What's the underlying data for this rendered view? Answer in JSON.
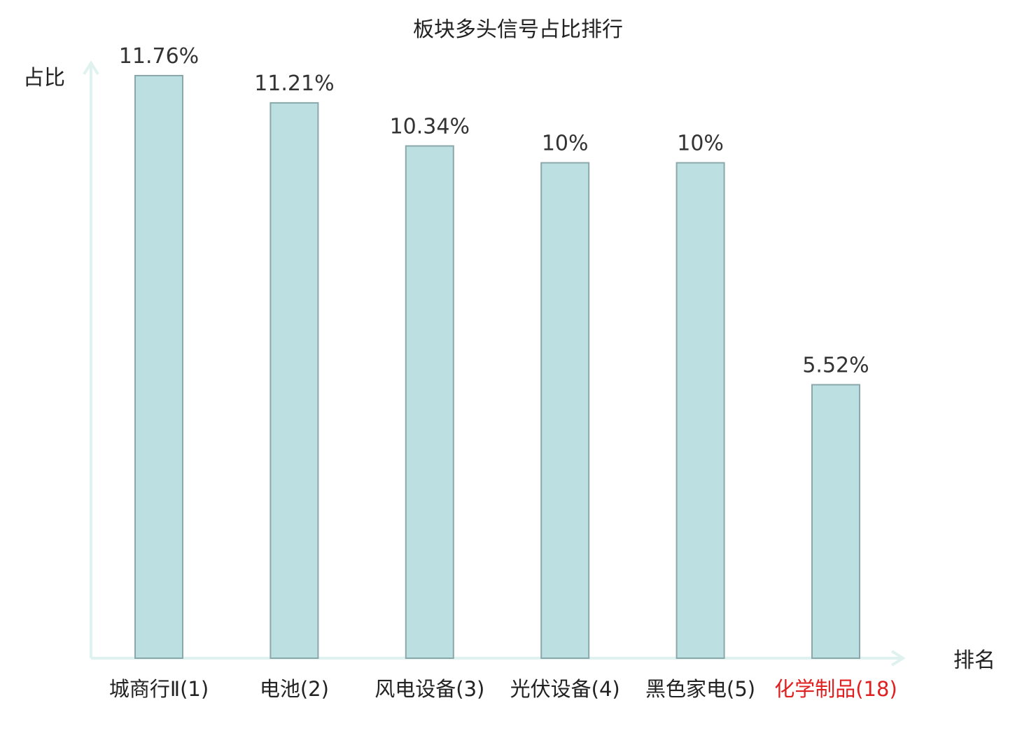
{
  "chart_data": {
    "type": "bar",
    "title": "板块多头信号占比排行",
    "xlabel": "排名",
    "ylabel": "占比",
    "categories": [
      "城商行Ⅱ(1)",
      "电池(2)",
      "风电设备(3)",
      "光伏设备(4)",
      "黑色家电(5)",
      "化学制品(18)"
    ],
    "values": [
      11.76,
      11.21,
      10.34,
      10,
      10,
      5.52
    ],
    "value_labels": [
      "11.76%",
      "11.21%",
      "10.34%",
      "10%",
      "10%",
      "5.52%"
    ],
    "highlight_index": 5,
    "ylim": [
      0,
      12
    ],
    "grid": false,
    "legend": "none",
    "colors": {
      "bar_fill": "#bce0e2",
      "bar_stroke": "#8aa8aa",
      "axis": "#e0f2ef",
      "text": "#333333",
      "label_text": "#222222",
      "highlight_text": "#e02020"
    }
  }
}
